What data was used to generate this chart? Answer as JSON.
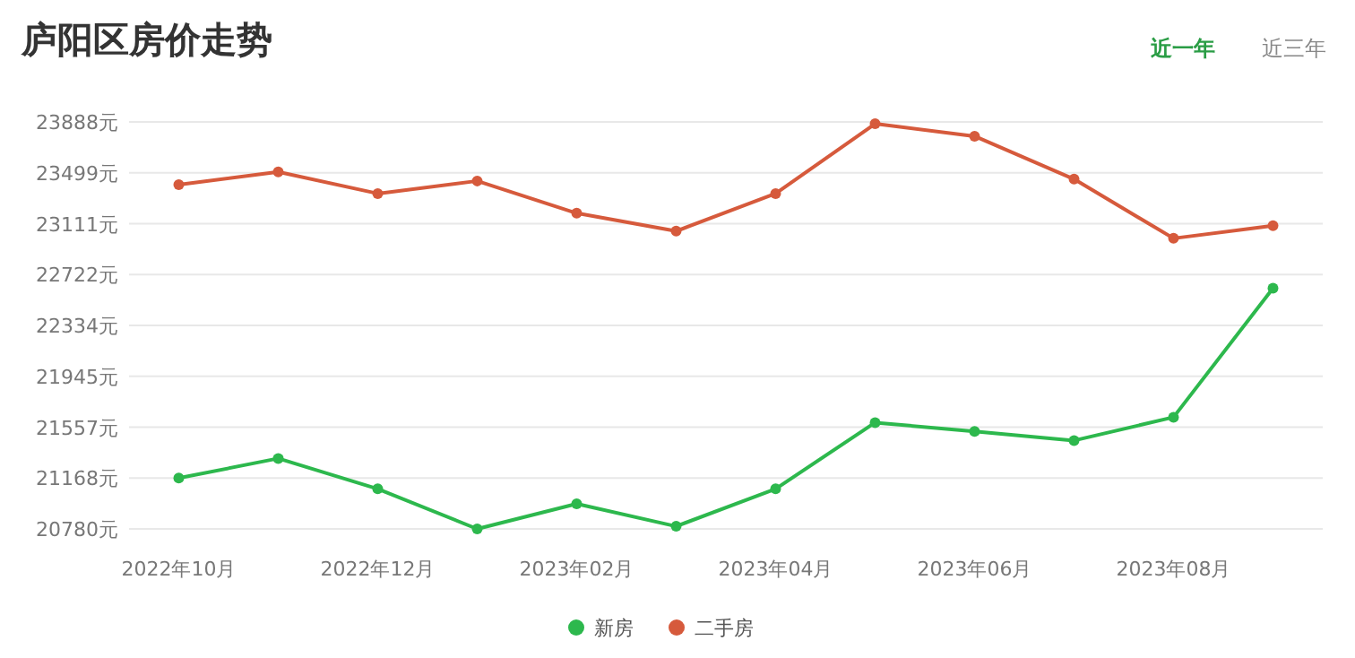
{
  "chart_data": {
    "type": "line",
    "title": "庐阳区房价走势",
    "annotations": [
      "近一年",
      "近三年"
    ],
    "categories": [
      "2022年10月",
      null,
      "2022年12月",
      null,
      "2023年02月",
      null,
      "2023年04月",
      null,
      "2023年06月",
      null,
      "2023年08月",
      null
    ],
    "series": [
      {
        "name": "新房",
        "color": "#2db84d",
        "values": [
          21168,
          21318,
          21086,
          20780,
          20972,
          20800,
          21086,
          21592,
          21524,
          21455,
          21633,
          22618
        ]
      },
      {
        "name": "二手房",
        "color": "#d65a3c",
        "values": [
          23409,
          23506,
          23341,
          23437,
          23191,
          23054,
          23341,
          23874,
          23779,
          23451,
          22999,
          23095
        ]
      }
    ],
    "ylim": [
      20780,
      23888
    ],
    "yticks": [
      {
        "value": 20780,
        "label": "20780元"
      },
      {
        "value": 21168,
        "label": "21168元"
      },
      {
        "value": 21557,
        "label": "21557元"
      },
      {
        "value": 21945,
        "label": "21945元"
      },
      {
        "value": 22334,
        "label": "22334元"
      },
      {
        "value": 22722,
        "label": "22722元"
      },
      {
        "value": 23111,
        "label": "23111元"
      },
      {
        "value": 23499,
        "label": "23499元"
      },
      {
        "value": 23888,
        "label": "23888元"
      }
    ],
    "grid": "y",
    "legend": "bottom",
    "marker": "circle",
    "line_style": "solid"
  }
}
